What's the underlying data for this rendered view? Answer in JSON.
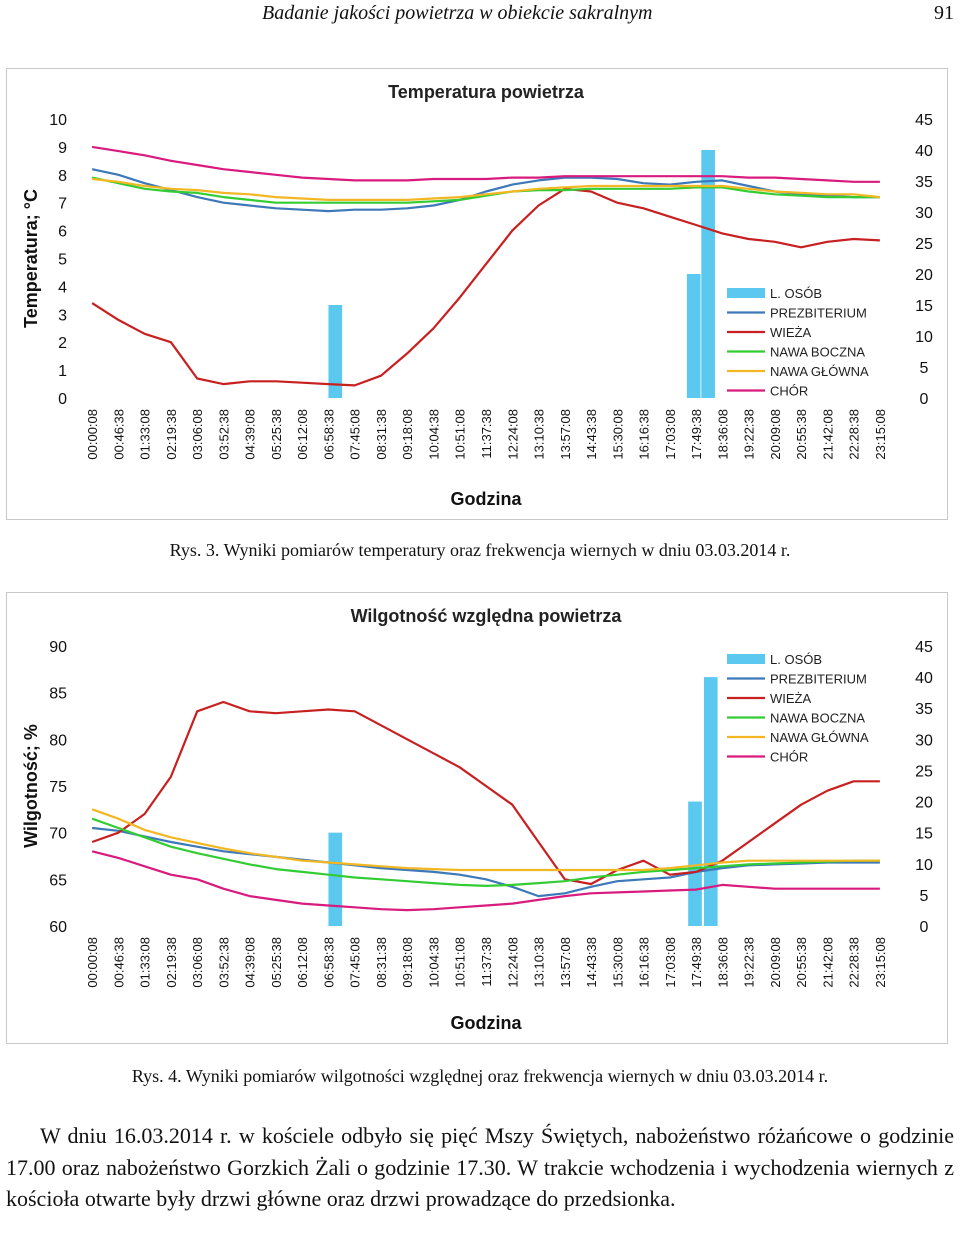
{
  "header": {
    "title": "Badanie jakości powietrza w obiekcie sakralnym",
    "page_number": "91"
  },
  "colors": {
    "l_osob": "#5bc8f0",
    "prezbiterium": "#3d79b8",
    "wieza": "#c82020",
    "nawa_boczna": "#33cc33",
    "nawa_glowna": "#f2b722",
    "chor": "#d81b7d"
  },
  "captions": {
    "fig3": "Rys. 3. Wyniki pomiarów temperatury oraz frekwencja wiernych w dniu 03.03.2014 r.",
    "fig4": "Rys. 4. Wyniki pomiarów wilgotności względnej oraz frekwencja wiernych w dniu 03.03.2014 r."
  },
  "body_text": [
    "W dniu 16.03.2014 r. w kościele odbyło się pięć Mszy Świętych, nabożeństwo różańcowe o godzinie 17.00 oraz nabożeństwo Gorzkich Żali o godzinie 17.30. W trakcie wchodzenia i wychodzenia wiernych z kościoła otwarte były drzwi główne oraz drzwi prowadzące do przedsionka."
  ],
  "chart_data": [
    {
      "type": "line",
      "title": "Temperatura powietrza",
      "xlabel": "Godzina",
      "ylabel": "Temperatura; °C",
      "ylim": [
        0,
        10
      ],
      "y2lim": [
        0,
        45
      ],
      "yticks": [
        "0",
        "1",
        "2",
        "3",
        "4",
        "5",
        "6",
        "7",
        "8",
        "9",
        "10"
      ],
      "y2ticks": [
        "0",
        "5",
        "10",
        "15",
        "20",
        "25",
        "30",
        "35",
        "40",
        "45"
      ],
      "categories": [
        "00:00:08",
        "00:46:38",
        "01:33:08",
        "02:19:38",
        "03:06:08",
        "03:52:38",
        "04:39:08",
        "05:25:38",
        "06:12:08",
        "06:58:38",
        "07:45:08",
        "08:31:38",
        "09:18:08",
        "10:04:38",
        "10:51:08",
        "11:37:38",
        "12:24:08",
        "13:10:38",
        "13:57:08",
        "14:43:38",
        "15:30:08",
        "16:16:38",
        "17:03:08",
        "17:49:38",
        "18:36:08",
        "19:22:38",
        "20:09:08",
        "20:55:38",
        "21:42:08",
        "22:28:38",
        "23:15:08"
      ],
      "bars": {
        "name": "L. OSÓB",
        "axis": "right",
        "points": [
          [
            9.5,
            15
          ],
          [
            23.15,
            20
          ],
          [
            23.7,
            40
          ]
        ]
      },
      "series": [
        {
          "name": "PREZBITERIUM",
          "values": [
            8.2,
            8.0,
            7.7,
            7.45,
            7.2,
            7.0,
            6.9,
            6.8,
            6.75,
            6.7,
            6.75,
            6.75,
            6.8,
            6.9,
            7.1,
            7.4,
            7.65,
            7.8,
            7.9,
            7.9,
            7.85,
            7.7,
            7.65,
            7.75,
            7.8,
            7.6,
            7.4,
            7.3,
            7.25,
            7.2,
            7.2
          ]
        },
        {
          "name": "WIEŻA",
          "values": [
            3.4,
            2.8,
            2.3,
            2.0,
            0.7,
            0.5,
            0.6,
            0.6,
            0.55,
            0.5,
            0.45,
            0.8,
            1.6,
            2.5,
            3.6,
            4.8,
            6.0,
            6.9,
            7.5,
            7.4,
            7.0,
            6.8,
            6.5,
            6.2,
            5.9,
            5.7,
            5.6,
            5.4,
            5.6,
            5.7,
            5.65
          ]
        },
        {
          "name": "NAWA BOCZNA",
          "values": [
            7.9,
            7.7,
            7.5,
            7.4,
            7.35,
            7.2,
            7.1,
            7.0,
            7.0,
            7.0,
            7.0,
            7.0,
            7.0,
            7.05,
            7.1,
            7.25,
            7.4,
            7.45,
            7.45,
            7.5,
            7.5,
            7.5,
            7.5,
            7.55,
            7.55,
            7.4,
            7.3,
            7.25,
            7.2,
            7.2,
            7.2
          ]
        },
        {
          "name": "NAWA GŁÓWNA",
          "values": [
            7.85,
            7.75,
            7.6,
            7.5,
            7.45,
            7.35,
            7.3,
            7.2,
            7.15,
            7.1,
            7.1,
            7.1,
            7.1,
            7.15,
            7.2,
            7.3,
            7.4,
            7.5,
            7.55,
            7.6,
            7.6,
            7.6,
            7.6,
            7.6,
            7.6,
            7.5,
            7.4,
            7.35,
            7.3,
            7.3,
            7.2
          ]
        },
        {
          "name": "CHÓR",
          "values": [
            9.0,
            8.85,
            8.7,
            8.5,
            8.35,
            8.2,
            8.1,
            8.0,
            7.9,
            7.85,
            7.8,
            7.8,
            7.8,
            7.85,
            7.85,
            7.85,
            7.9,
            7.9,
            7.95,
            7.95,
            7.95,
            7.95,
            7.95,
            7.95,
            7.95,
            7.9,
            7.9,
            7.85,
            7.8,
            7.75,
            7.75
          ]
        }
      ]
    },
    {
      "type": "line",
      "title": "Wilgotność względna powietrza",
      "xlabel": "Godzina",
      "ylabel": "Wilgotność; %",
      "ylim": [
        60,
        90
      ],
      "y2lim": [
        0,
        45
      ],
      "yticks": [
        "60",
        "65",
        "70",
        "75",
        "80",
        "85",
        "90"
      ],
      "y2ticks": [
        "0",
        "5",
        "10",
        "15",
        "20",
        "25",
        "30",
        "35",
        "40",
        "45"
      ],
      "categories": [
        "00:00:08",
        "00:46:38",
        "01:33:08",
        "02:19:38",
        "03:06:08",
        "03:52:38",
        "04:39:08",
        "05:25:38",
        "06:12:08",
        "06:58:38",
        "07:45:08",
        "08:31:38",
        "09:18:08",
        "10:04:38",
        "10:51:08",
        "11:37:38",
        "12:24:08",
        "13:10:38",
        "13:57:08",
        "14:43:38",
        "15:30:08",
        "16:16:38",
        "17:03:08",
        "17:49:38",
        "18:36:08",
        "19:22:38",
        "20:09:08",
        "20:55:38",
        "21:42:08",
        "22:28:38",
        "23:15:08"
      ],
      "bars": {
        "name": "L. OSÓB",
        "axis": "right",
        "points": [
          [
            9.5,
            15
          ],
          [
            23.2,
            20
          ],
          [
            23.8,
            40
          ]
        ]
      },
      "series": [
        {
          "name": "PREZBITERIUM",
          "values": [
            70.5,
            70.2,
            69.6,
            69.0,
            68.5,
            68.0,
            67.7,
            67.4,
            67.1,
            66.8,
            66.5,
            66.2,
            66.0,
            65.8,
            65.5,
            65.0,
            64.2,
            63.2,
            63.5,
            64.2,
            64.8,
            65.0,
            65.2,
            65.8,
            66.2,
            66.5,
            66.6,
            66.7,
            66.8,
            66.8,
            66.8
          ]
        },
        {
          "name": "WIEŻA",
          "values": [
            69.0,
            70.0,
            72.0,
            76.0,
            83.0,
            84.0,
            83.0,
            82.8,
            83.0,
            83.2,
            83.0,
            81.5,
            80.0,
            78.5,
            77.0,
            75.0,
            73.0,
            69.0,
            65.0,
            64.5,
            66.0,
            67.0,
            65.5,
            65.8,
            67.0,
            69.0,
            71.0,
            73.0,
            74.5,
            75.5,
            75.5
          ]
        },
        {
          "name": "NAWA BOCZNA",
          "values": [
            71.5,
            70.5,
            69.5,
            68.5,
            67.8,
            67.2,
            66.6,
            66.1,
            65.8,
            65.5,
            65.2,
            65.0,
            64.8,
            64.6,
            64.4,
            64.3,
            64.4,
            64.6,
            64.8,
            65.2,
            65.5,
            65.8,
            66.0,
            66.2,
            66.4,
            66.6,
            66.7,
            66.8,
            66.9,
            67.0,
            67.0
          ]
        },
        {
          "name": "NAWA GŁÓWNA",
          "values": [
            72.5,
            71.5,
            70.3,
            69.5,
            68.9,
            68.3,
            67.8,
            67.4,
            67.0,
            66.8,
            66.6,
            66.4,
            66.2,
            66.1,
            66.0,
            66.0,
            66.0,
            66.0,
            66.0,
            66.0,
            66.0,
            66.0,
            66.2,
            66.5,
            66.8,
            67.0,
            67.0,
            67.0,
            67.0,
            67.0,
            67.0
          ]
        },
        {
          "name": "CHÓR",
          "values": [
            68.0,
            67.3,
            66.4,
            65.5,
            65.0,
            64.0,
            63.2,
            62.8,
            62.4,
            62.2,
            62.0,
            61.8,
            61.7,
            61.8,
            62.0,
            62.2,
            62.4,
            62.8,
            63.2,
            63.5,
            63.6,
            63.7,
            63.8,
            63.9,
            64.4,
            64.2,
            64.0,
            64.0,
            64.0,
            64.0,
            64.0
          ]
        }
      ]
    }
  ]
}
